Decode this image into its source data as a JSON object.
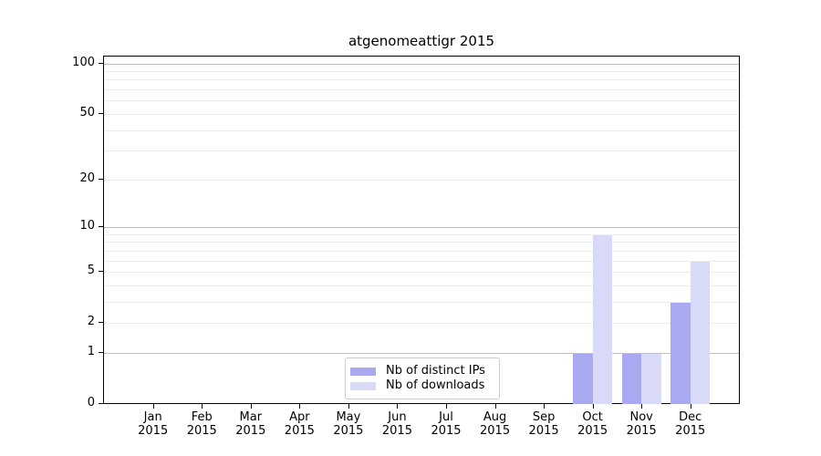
{
  "title": "atgenomeattigr 2015",
  "chart_data": {
    "type": "bar",
    "title": "atgenomeattigr 2015",
    "categories": [
      "Jan",
      "Feb",
      "Mar",
      "Apr",
      "May",
      "Jun",
      "Jul",
      "Aug",
      "Sep",
      "Oct",
      "Nov",
      "Dec"
    ],
    "category_year": "2015",
    "series": [
      {
        "name": "Nb of distinct IPs",
        "color": "#a9a9f1",
        "values": [
          0,
          0,
          0,
          0,
          0,
          0,
          0,
          0,
          0,
          1,
          1,
          3
        ]
      },
      {
        "name": "Nb of downloads",
        "color": "#d9d9f8",
        "values": [
          0,
          0,
          0,
          0,
          0,
          0,
          0,
          0,
          0,
          9,
          1,
          6
        ]
      }
    ],
    "yscale": "log1p",
    "ylim": [
      0,
      111
    ],
    "ytick_values": [
      100,
      50,
      20,
      10,
      5,
      2,
      1,
      0
    ],
    "grid": "horizontal",
    "grid_major_values": [
      1,
      10,
      100
    ],
    "grid_minor_values": [
      2,
      3,
      4,
      5,
      6,
      7,
      8,
      9,
      20,
      30,
      40,
      50,
      60,
      70,
      80,
      90
    ],
    "legend_position": "lower center",
    "xlabel": "",
    "ylabel": ""
  },
  "colors": {
    "background": "#ffffff",
    "spine": "#000000",
    "text": "#000000",
    "grid_major": "#c0c0c0",
    "grid_minor": "#ececec",
    "legend_border": "#cccccc"
  }
}
